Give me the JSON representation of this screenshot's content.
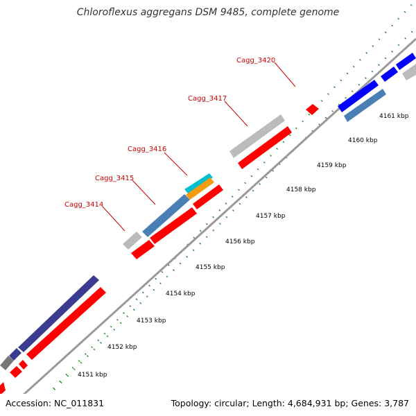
{
  "title": "Chloroflexus aggregans DSM 9485, complete genome",
  "accession": "Accession: NC_011831",
  "summary": "Topology: circular; Length: 4,684,931 bp; Genes: 3,787",
  "kbp_labels": [
    "4151 kbp",
    "4152 kbp",
    "4153 kbp",
    "4154 kbp",
    "4155 kbp",
    "4156 kbp",
    "4157 kbp",
    "4158 kbp",
    "4159 kbp",
    "4160 kbp",
    "4161 kbp"
  ],
  "gene_labels": [
    "Cagg_3414",
    "Cagg_3415",
    "Cagg_3416",
    "Cagg_3417",
    "Cagg_3420"
  ],
  "colors": {
    "backbone": "#999999",
    "tick_major": "#008000",
    "tick_minor": "#22aa22",
    "leader": "#cc0000",
    "red": "#ff0000",
    "grey": "#bbbbbb",
    "steelblue": "#4a7fb5",
    "navy": "#3b3b8f",
    "blue": "#0000ff",
    "cyan": "#00c0d0",
    "orange": "#f39c12",
    "darkgrey": "#777777"
  }
}
